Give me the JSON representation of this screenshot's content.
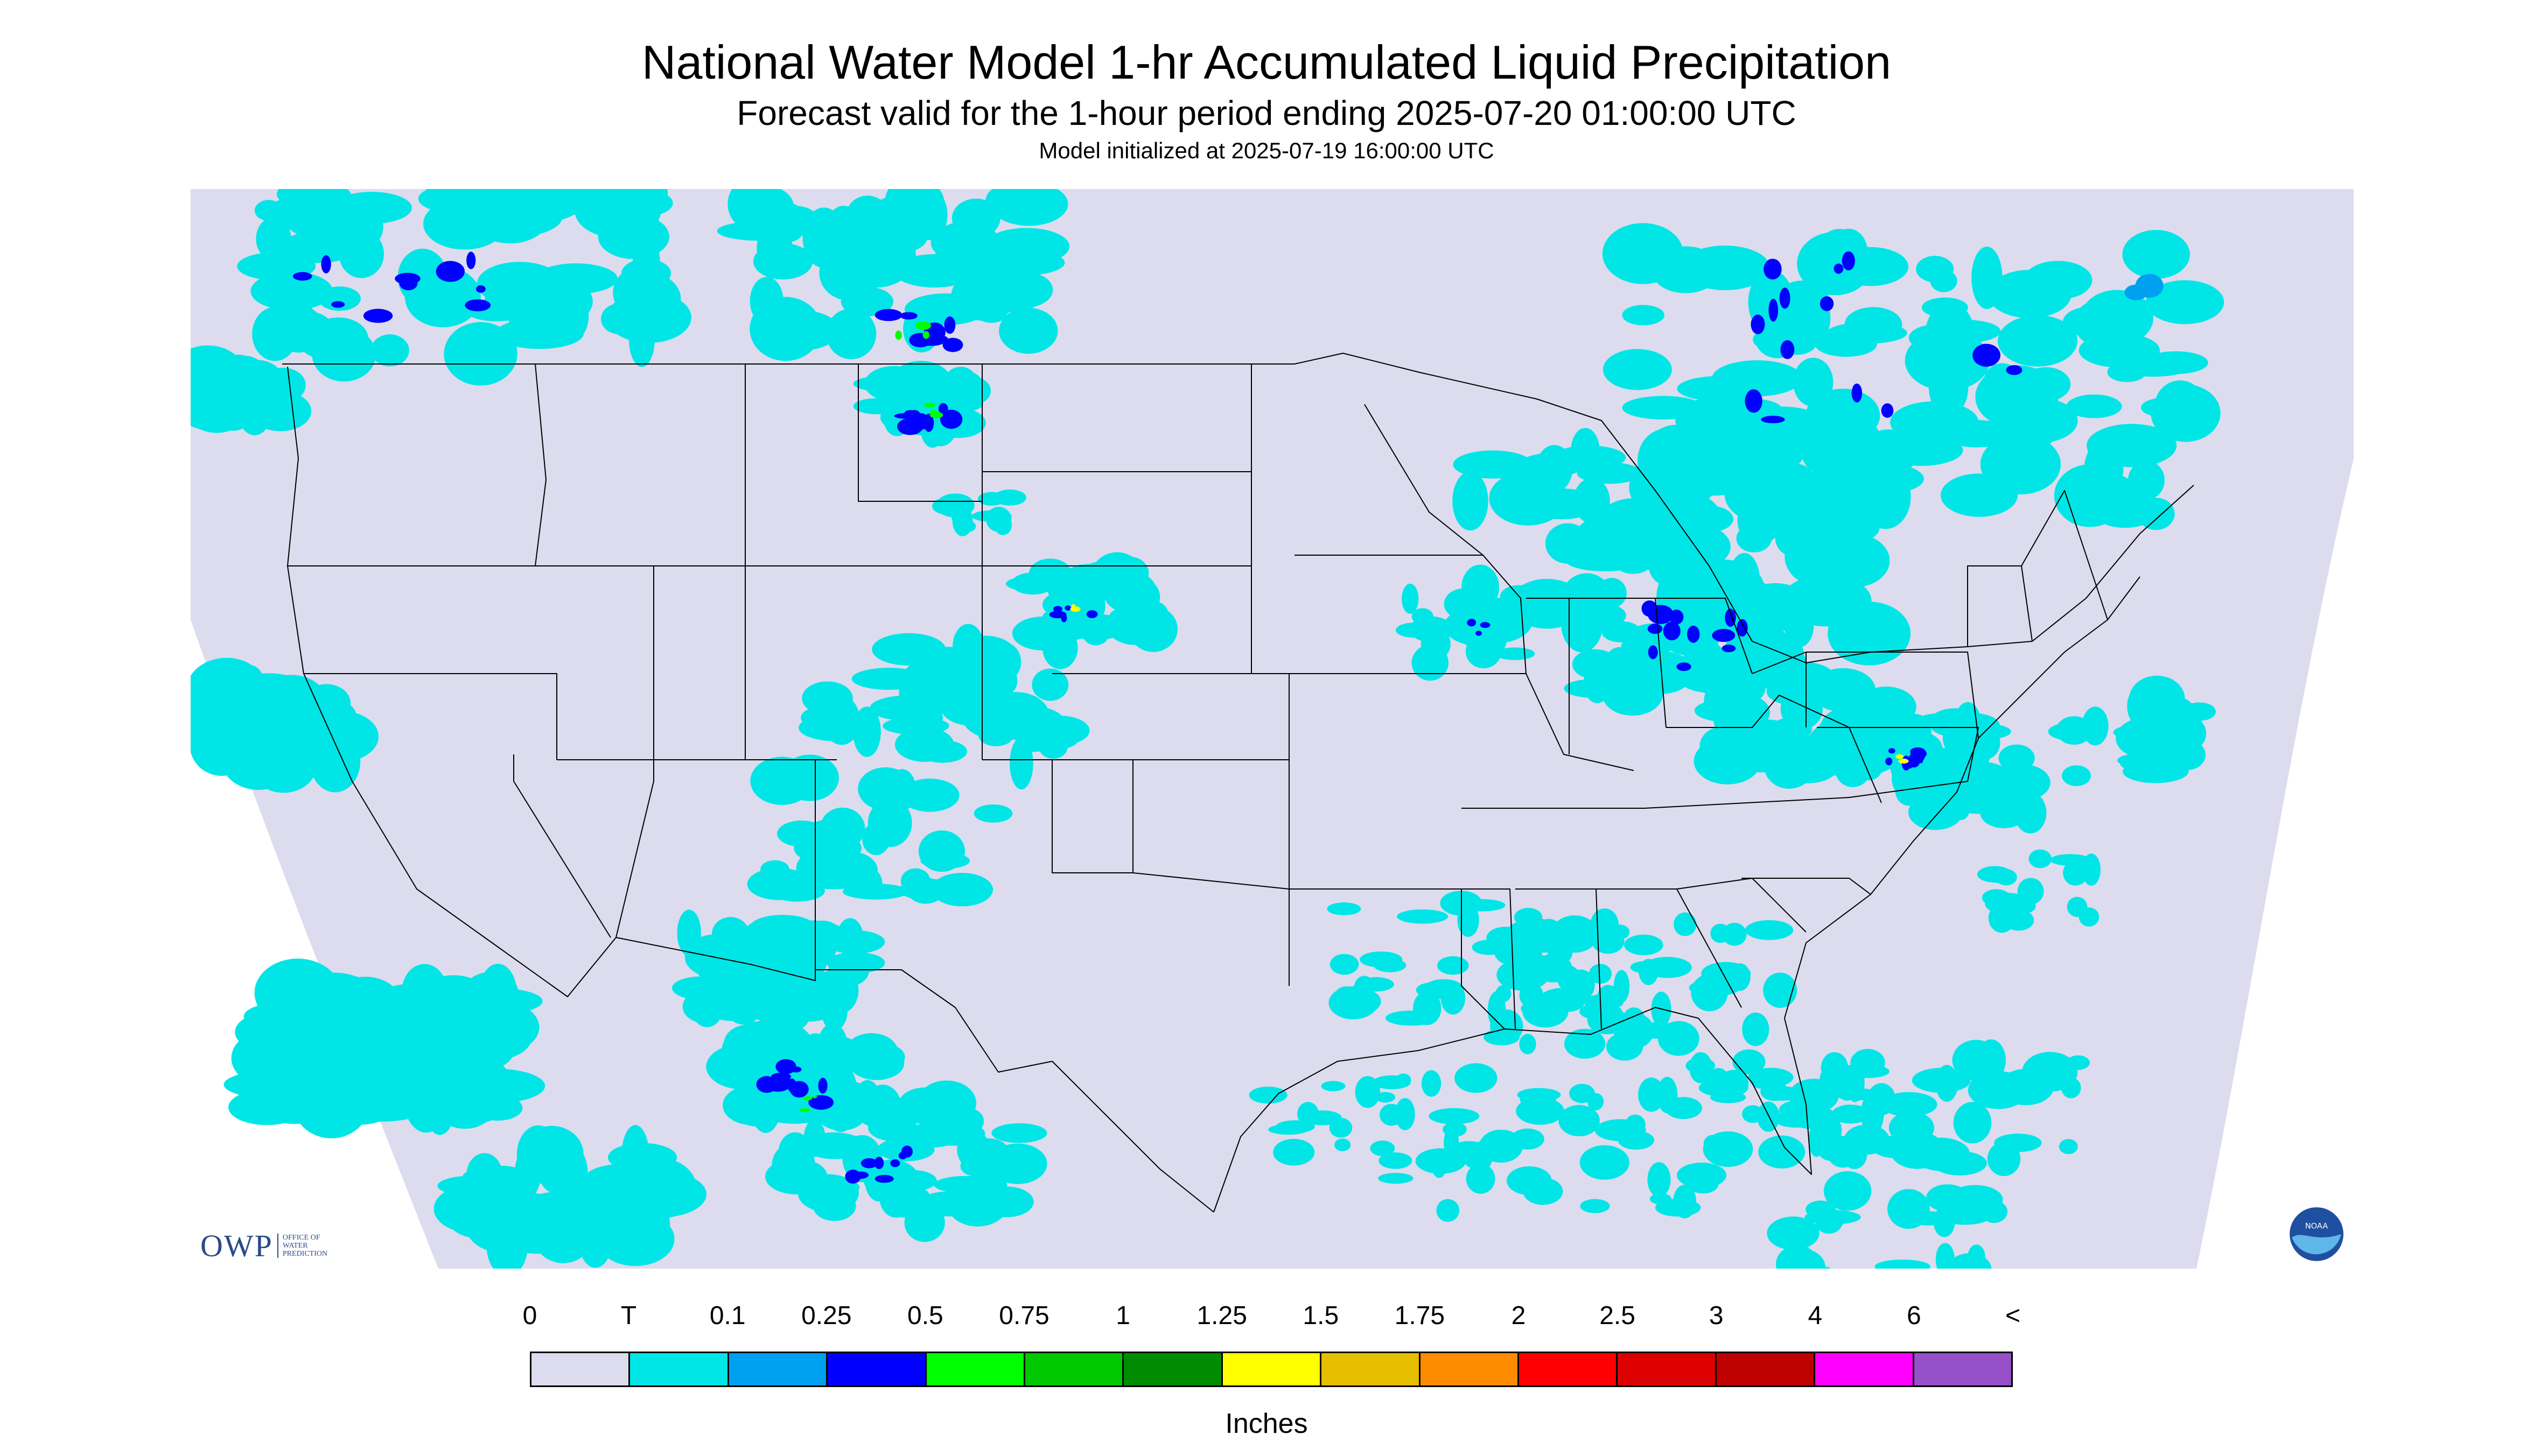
{
  "header": {
    "title": "National Water Model 1-hr Accumulated Liquid Precipitation",
    "subtitle": "Forecast valid for the 1-hour period ending 2025-07-20 01:00:00 UTC",
    "init": "Model initialized at 2025-07-19 16:00:00 UTC"
  },
  "map": {
    "background_color": "#dcdcee",
    "outside_color": "#ffffff",
    "boundary_color": "#000000",
    "precip_colors": {
      "trace": "#00e6e6",
      "light": "#00a0f0",
      "moderate": "#0000ff",
      "heavy": "#00ff00",
      "very_heavy": "#ffff00"
    }
  },
  "legend": {
    "units": "Inches",
    "labels": [
      "0",
      "T",
      "0.1",
      "0.25",
      "0.5",
      "0.75",
      "1",
      "1.25",
      "1.5",
      "1.75",
      "2",
      "2.5",
      "3",
      "4",
      "6",
      "<"
    ],
    "colors": [
      "#dcdcee",
      "#00e6e6",
      "#00a0f0",
      "#0000ff",
      "#00ff00",
      "#00c800",
      "#008c00",
      "#ffff00",
      "#e6be00",
      "#ff8c00",
      "#ff0000",
      "#dc0000",
      "#be0000",
      "#ff00ff",
      "#9650c8"
    ]
  },
  "logos": {
    "owp": {
      "text": "OWP",
      "sub": [
        "OFFICE OF",
        "WATER",
        "PREDICTION"
      ]
    },
    "noaa": {
      "text": "NOAA"
    }
  }
}
